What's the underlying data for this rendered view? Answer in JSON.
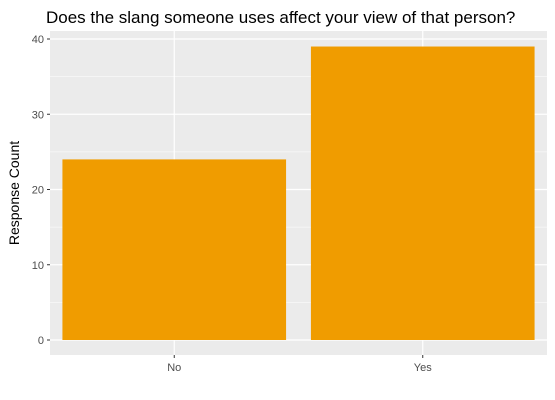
{
  "chart_data": {
    "type": "bar",
    "title": "Does the slang someone uses affect your view of that person?",
    "xlabel": "",
    "ylabel": "Response Count",
    "categories": [
      "No",
      "Yes"
    ],
    "values": [
      24,
      39
    ],
    "ylim": [
      0,
      40
    ],
    "yticks": [
      0,
      10,
      20,
      30,
      40
    ],
    "grid": true,
    "legend": "none",
    "bar_color": "#f09c00",
    "panel_color": "#ebebeb",
    "grid_color": "#ffffff"
  }
}
